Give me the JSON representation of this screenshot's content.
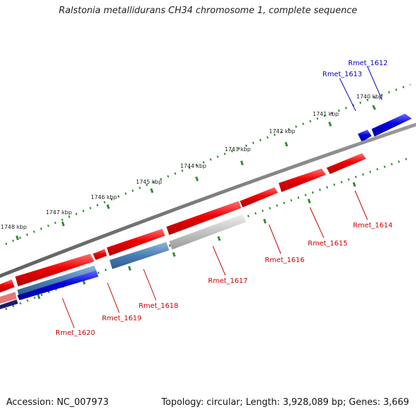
{
  "title": "Ralstonia metallidurans CH34 chromosome 1, complete sequence",
  "footer": {
    "accession": "Accession: NC_007973",
    "summary": "Topology: circular; Length: 3,928,089 bp; Genes: 3,669"
  },
  "colors": {
    "backbone": "#7a7a7a",
    "ticks": "#2e8b2e",
    "label_red": "#cc0000",
    "label_blue": "#0000cc"
  },
  "kbp_labels": [
    "1740 kbp",
    "1741 kbp",
    "1742 kbp",
    "1743 kbp",
    "1744 kbp",
    "1745 kbp",
    "1746 kbp",
    "1747 kbp",
    "1748 kbp"
  ],
  "genes": [
    {
      "label": "Rmet_1612",
      "strand": "forward",
      "color": "#0000dd"
    },
    {
      "label": "Rmet_1613",
      "strand": "forward",
      "color": "#0000dd"
    },
    {
      "label": "Rmet_1614",
      "strand": "reverse",
      "color": "#ee0000"
    },
    {
      "label": "Rmet_1615",
      "strand": "reverse",
      "color": "#ee0000"
    },
    {
      "label": "Rmet_1616",
      "strand": "reverse",
      "color": "#ee0000"
    },
    {
      "label": "Rmet_1617",
      "strand": "reverse",
      "color": "#bdbdbd"
    },
    {
      "label": "Rmet_1618",
      "strand": "reverse",
      "color": "#4a7fb5"
    },
    {
      "label": "Rmet_1619",
      "strand": "reverse",
      "color": "#ee0000"
    },
    {
      "label": "Rmet_1620",
      "strand": "reverse",
      "color": "#2222dd"
    }
  ]
}
